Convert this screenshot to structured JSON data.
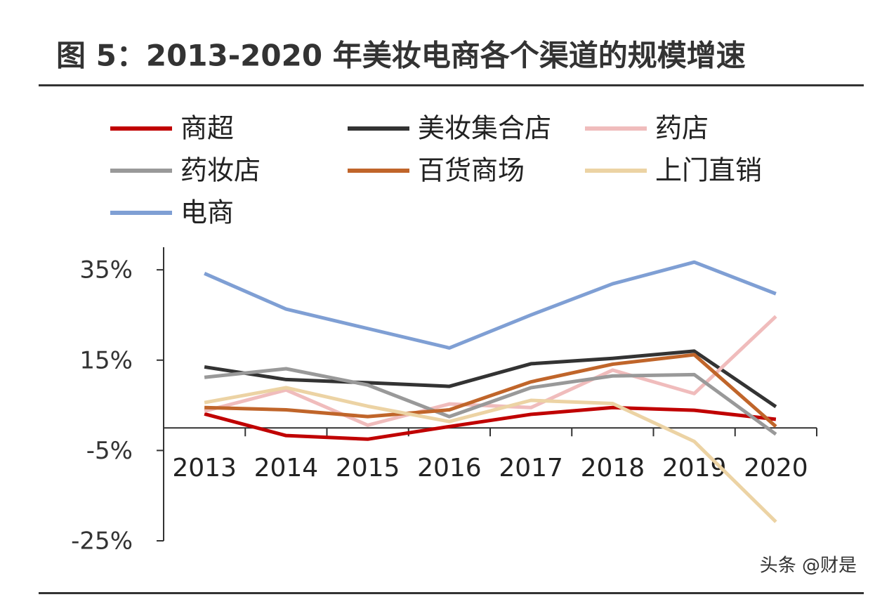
{
  "chart_data": {
    "type": "line",
    "title": "图 5：2013-2020 年美妆电商各个渠道的规模增速",
    "watermark": "头条 @财是",
    "categories": [
      "2013",
      "2014",
      "2015",
      "2016",
      "2017",
      "2018",
      "2019",
      "2020"
    ],
    "series": [
      {
        "name": "商超",
        "color": "#c00000",
        "values": [
          3.1,
          -1.7,
          -2.5,
          0.3,
          3.0,
          4.5,
          3.9,
          1.9
        ]
      },
      {
        "name": "美妆集合店",
        "color": "#333333",
        "values": [
          13.5,
          10.7,
          10.0,
          9.2,
          14.2,
          15.4,
          17.0,
          4.7
        ]
      },
      {
        "name": "药店",
        "color": "#f0bcbc",
        "values": [
          3.7,
          8.4,
          0.6,
          5.3,
          4.5,
          12.8,
          7.6,
          24.7
        ]
      },
      {
        "name": "药妆店",
        "color": "#999999",
        "values": [
          11.2,
          13.1,
          9.5,
          2.5,
          8.9,
          11.5,
          11.8,
          -1.4
        ]
      },
      {
        "name": "百货商场",
        "color": "#c0652a",
        "values": [
          4.5,
          4.0,
          2.5,
          4.0,
          10.2,
          14.1,
          16.2,
          0.3
        ]
      },
      {
        "name": "上门直销",
        "color": "#ecd3a4",
        "values": [
          5.6,
          8.9,
          4.8,
          1.4,
          6.1,
          5.4,
          -3.0,
          -20.8
        ]
      },
      {
        "name": "电商",
        "color": "#7f9fd4",
        "values": [
          34.2,
          26.3,
          22.0,
          17.7,
          25.0,
          31.9,
          36.7,
          29.7
        ]
      }
    ],
    "ylim": [
      -25,
      40
    ],
    "yticks": [
      {
        "value": -25,
        "label": "-25%"
      },
      {
        "value": -5,
        "label": "-5%"
      },
      {
        "value": 15,
        "label": "15%"
      },
      {
        "value": 35,
        "label": "35%"
      }
    ]
  }
}
